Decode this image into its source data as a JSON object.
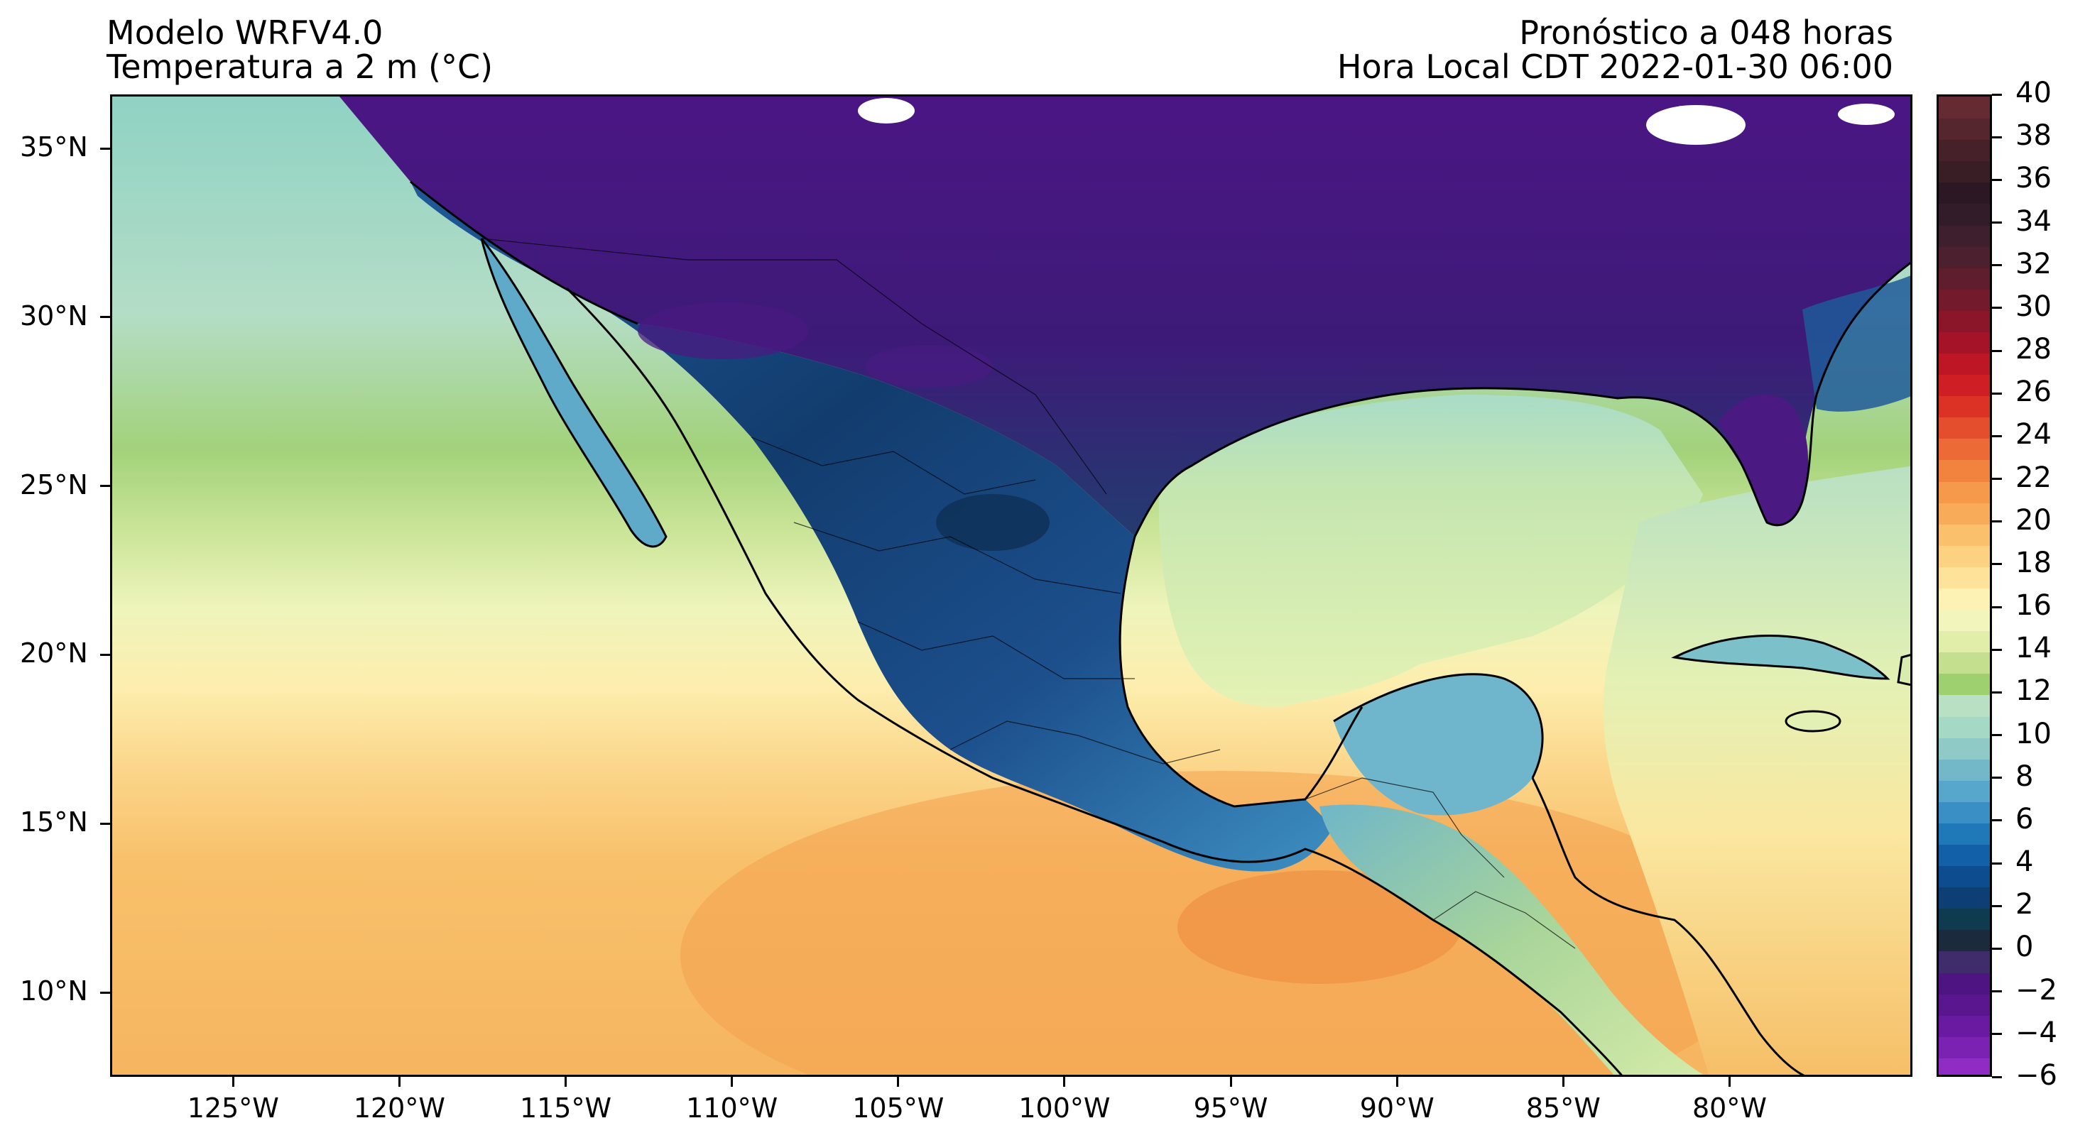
{
  "titles": {
    "left_line1": "Modelo WRFV4.0",
    "left_line2": "Temperatura a 2 m (°C)",
    "right_line1": "Pronóstico a 048 horas",
    "right_line2": "Hora Local CDT 2022-01-30 06:00"
  },
  "map": {
    "type": "heatmap",
    "lon_range": [
      -128.7,
      -74.5
    ],
    "lat_range": [
      7.5,
      36.6
    ],
    "lat_ticks": [
      "35°N",
      "30°N",
      "25°N",
      "20°N",
      "15°N",
      "10°N"
    ],
    "lat_tick_values": [
      35,
      30,
      25,
      20,
      15,
      10
    ],
    "lon_ticks": [
      "125°W",
      "120°W",
      "115°W",
      "110°W",
      "105°W",
      "100°W",
      "95°W",
      "90°W",
      "85°W",
      "80°W"
    ],
    "lon_tick_values": [
      -125,
      -120,
      -115,
      -110,
      -105,
      -100,
      -95,
      -90,
      -85,
      -80
    ],
    "ocean_color_west_north": "#9fd8c6",
    "ocean_color_south": "#f6b95a",
    "gulf_color": "#d9efb5",
    "cold_land_color": "#1a3e74",
    "very_cold_color": "#4a1486",
    "coastline_color": "#000000"
  },
  "colorbar": {
    "min": -6,
    "max": 40,
    "step": 1,
    "labels": [
      "40",
      "38",
      "36",
      "34",
      "32",
      "30",
      "28",
      "26",
      "24",
      "22",
      "20",
      "18",
      "16",
      "14",
      "12",
      "10",
      "8",
      "6",
      "4",
      "2",
      "0",
      "−2",
      "−4",
      "−6"
    ],
    "colors": [
      "#8e2cc4",
      "#7b22b2",
      "#6a1aa0",
      "#5a168f",
      "#4e1582",
      "#3f2d6b",
      "#1c2a3d",
      "#0e3b4f",
      "#0d3f74",
      "#0d4d8f",
      "#1260a8",
      "#1f78b8",
      "#3a8fc4",
      "#57a6cc",
      "#72b8c9",
      "#8fcac6",
      "#a6d8c6",
      "#b9e0c3",
      "#9fd06f",
      "#c4e08e",
      "#e1eeaa",
      "#f2f6bd",
      "#fdf1b3",
      "#fde29a",
      "#fcd181",
      "#fbc06b",
      "#f8ac5a",
      "#f59a4a",
      "#f1833f",
      "#ec6a36",
      "#e54e2d",
      "#dc3226",
      "#d01f24",
      "#bd1726",
      "#a41327",
      "#8b1529",
      "#731a2c",
      "#5f1e2e",
      "#4d2030",
      "#3e1f2e",
      "#331c29",
      "#2b1824",
      "#3a1e26",
      "#47212a",
      "#56262e",
      "#652b33"
    ]
  }
}
